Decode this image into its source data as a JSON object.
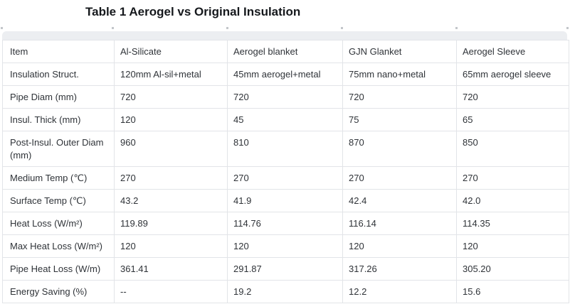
{
  "page": {
    "title": "Table 1 Aerogel vs Original Insulation"
  },
  "colors": {
    "table_border": "#e2e4e8",
    "top_bar": "#eceef1",
    "cell_text": "#2f3338",
    "title_text": "#15181c",
    "grip": "#c3c6ca"
  },
  "table": {
    "header": [
      "Item",
      "Al-Silicate",
      "Aerogel blanket",
      "GJN Glanket",
      "Aerogel Sleeve"
    ],
    "rows": [
      [
        "Insulation Struct.",
        "120mm Al-sil+metal",
        "45mm aerogel+metal",
        "75mm nano+metal",
        "65mm aerogel sleeve"
      ],
      [
        "Pipe Diam (mm)",
        "720",
        "720",
        "720",
        "720"
      ],
      [
        "Insul. Thick (mm)",
        "120",
        "45",
        "75",
        "65"
      ],
      [
        "Post-Insul. Outer Diam (mm)",
        "960",
        "810",
        "870",
        "850"
      ],
      [
        "Medium Temp (℃)",
        "270",
        "270",
        "270",
        "270"
      ],
      [
        "Surface Temp (℃)",
        "43.2",
        "41.9",
        "42.4",
        "42.0"
      ],
      [
        "Heat Loss (W/m²)",
        "119.89",
        "114.76",
        "116.14",
        "114.35"
      ],
      [
        "Max Heat Loss (W/m²)",
        "120",
        "120",
        "120",
        "120"
      ],
      [
        "Pipe Heat Loss (W/m)",
        "361.41",
        "291.87",
        "317.26",
        "305.20"
      ],
      [
        "Energy Saving (%)",
        "--",
        "19.2",
        "12.2",
        "15.6"
      ]
    ]
  }
}
